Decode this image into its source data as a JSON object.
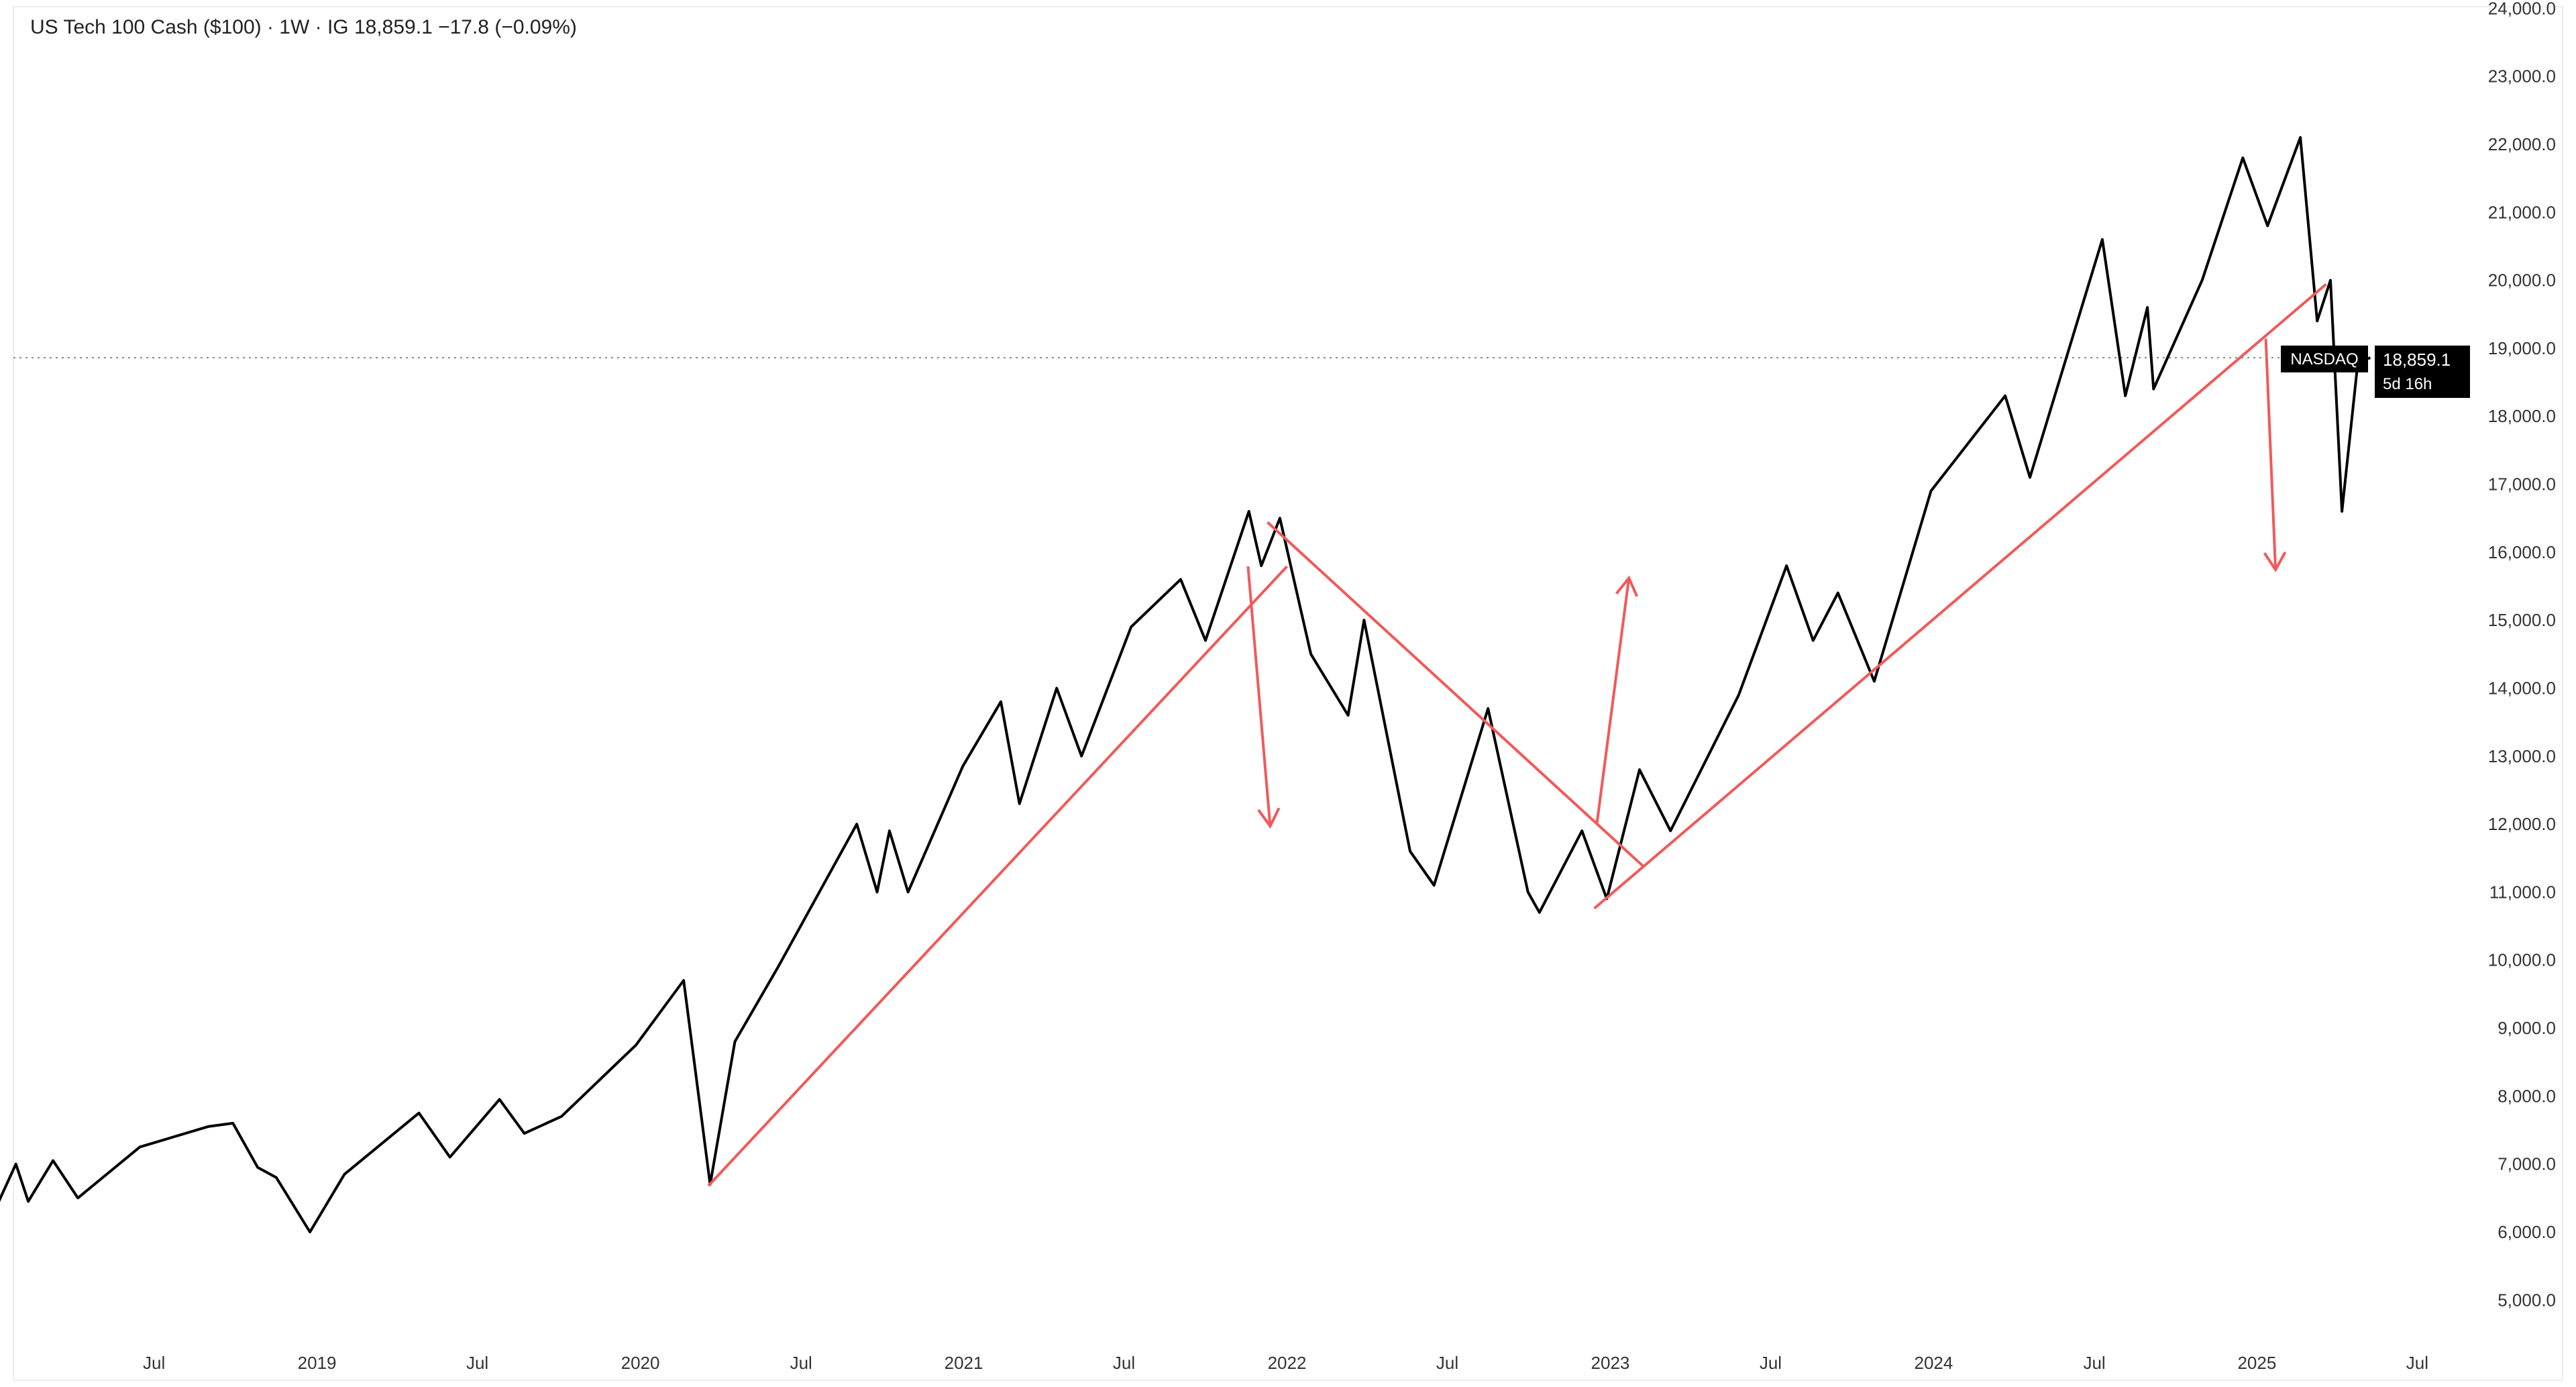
{
  "header": {
    "title": "US Tech 100 Cash ($100) · 1W · IG  18,859.1  −17.8 (−0.09%)"
  },
  "price_label": {
    "symbol": "NASDAQ",
    "price": "18,859.1",
    "countdown": "5d 16h"
  },
  "colors": {
    "line": "#000000",
    "trend": "#f05a5a",
    "grid_dotted": "#888888"
  },
  "chart_data": {
    "type": "line",
    "title": "US Tech 100 Cash ($100) · 1W · IG",
    "ylim": [
      5000,
      24000
    ],
    "grid": false,
    "y_ticks": [
      "24,000.0",
      "23,000.0",
      "22,000.0",
      "21,000.0",
      "20,000.0",
      "19,000.0",
      "18,000.0",
      "17,000.0",
      "16,000.0",
      "15,000.0",
      "14,000.0",
      "13,000.0",
      "12,000.0",
      "11,000.0",
      "10,000.0",
      "9,000.0",
      "8,000.0",
      "7,000.0",
      "6,000.0",
      "5,000.0"
    ],
    "x_ticks": [
      {
        "label": "Jul",
        "date": "2018-07-01"
      },
      {
        "label": "2019",
        "date": "2019-01-01"
      },
      {
        "label": "Jul",
        "date": "2019-07-01"
      },
      {
        "label": "2020",
        "date": "2020-01-01"
      },
      {
        "label": "Jul",
        "date": "2020-07-01"
      },
      {
        "label": "2021",
        "date": "2021-01-01"
      },
      {
        "label": "Jul",
        "date": "2021-07-01"
      },
      {
        "label": "2022",
        "date": "2022-01-01"
      },
      {
        "label": "Jul",
        "date": "2022-07-01"
      },
      {
        "label": "2023",
        "date": "2023-01-01"
      },
      {
        "label": "Jul",
        "date": "2023-07-01"
      },
      {
        "label": "2024",
        "date": "2024-01-01"
      },
      {
        "label": "Jul",
        "date": "2024-07-01"
      },
      {
        "label": "2025",
        "date": "2025-01-01"
      },
      {
        "label": "Jul",
        "date": "2025-07-01"
      }
    ],
    "current_price": 18859.1,
    "series": [
      {
        "points": [
          [
            "2018-01-05",
            6400
          ],
          [
            "2018-01-26",
            7000
          ],
          [
            "2018-02-09",
            6450
          ],
          [
            "2018-03-09",
            7050
          ],
          [
            "2018-04-06",
            6500
          ],
          [
            "2018-06-15",
            7250
          ],
          [
            "2018-08-31",
            7550
          ],
          [
            "2018-09-28",
            7600
          ],
          [
            "2018-10-26",
            6950
          ],
          [
            "2018-11-16",
            6800
          ],
          [
            "2018-12-24",
            6000
          ],
          [
            "2019-02-01",
            6850
          ],
          [
            "2019-04-26",
            7750
          ],
          [
            "2019-05-31",
            7100
          ],
          [
            "2019-07-26",
            7950
          ],
          [
            "2019-08-23",
            7450
          ],
          [
            "2019-10-04",
            7700
          ],
          [
            "2019-12-27",
            8750
          ],
          [
            "2020-02-19",
            9700
          ],
          [
            "2020-03-20",
            6700
          ],
          [
            "2020-04-17",
            8800
          ],
          [
            "2020-06-05",
            9900
          ],
          [
            "2020-09-02",
            12000
          ],
          [
            "2020-09-25",
            11000
          ],
          [
            "2020-10-09",
            11900
          ],
          [
            "2020-10-30",
            11000
          ],
          [
            "2020-12-31",
            12850
          ],
          [
            "2021-02-12",
            13800
          ],
          [
            "2021-03-05",
            12300
          ],
          [
            "2021-04-16",
            14000
          ],
          [
            "2021-05-14",
            13000
          ],
          [
            "2021-07-09",
            14900
          ],
          [
            "2021-09-03",
            15600
          ],
          [
            "2021-10-01",
            14700
          ],
          [
            "2021-11-19",
            16600
          ],
          [
            "2021-12-03",
            15800
          ],
          [
            "2021-12-24",
            16500
          ],
          [
            "2022-01-28",
            14500
          ],
          [
            "2022-03-11",
            13600
          ],
          [
            "2022-03-29",
            15000
          ],
          [
            "2022-05-20",
            11600
          ],
          [
            "2022-06-16",
            11100
          ],
          [
            "2022-08-16",
            13700
          ],
          [
            "2022-09-30",
            11000
          ],
          [
            "2022-10-13",
            10700
          ],
          [
            "2022-11-30",
            11900
          ],
          [
            "2022-12-28",
            10900
          ],
          [
            "2023-02-03",
            12800
          ],
          [
            "2023-03-10",
            11900
          ],
          [
            "2023-05-26",
            13900
          ],
          [
            "2023-07-19",
            15800
          ],
          [
            "2023-08-18",
            14700
          ],
          [
            "2023-09-15",
            15400
          ],
          [
            "2023-10-26",
            14100
          ],
          [
            "2023-12-29",
            16900
          ],
          [
            "2024-03-22",
            18300
          ],
          [
            "2024-04-19",
            17100
          ],
          [
            "2024-07-10",
            20600
          ],
          [
            "2024-08-05",
            18300
          ],
          [
            "2024-08-30",
            19600
          ],
          [
            "2024-09-06",
            18400
          ],
          [
            "2024-10-31",
            20000
          ],
          [
            "2024-12-16",
            21800
          ],
          [
            "2025-01-13",
            20800
          ],
          [
            "2025-02-19",
            22100
          ],
          [
            "2025-03-10",
            19400
          ],
          [
            "2025-03-25",
            20000
          ],
          [
            "2025-04-07",
            16600
          ],
          [
            "2025-04-25",
            18800
          ],
          [
            "2025-05-09",
            18859.1
          ]
        ]
      }
    ],
    "annotations": {
      "trendlines": [
        {
          "from": [
            "2020-03-18",
            6680
          ],
          "to": [
            "2022-01-01",
            15790
          ]
        },
        {
          "from": [
            "2021-12-10",
            16440
          ],
          "to": [
            "2023-02-08",
            11370
          ]
        },
        {
          "from": [
            "2022-12-14",
            10760
          ],
          "to": [
            "2025-03-20",
            19940
          ]
        }
      ],
      "arrows": [
        {
          "from": [
            "2021-11-18",
            15790
          ],
          "to": [
            "2021-12-13",
            11970
          ]
        },
        {
          "from": [
            "2022-12-17",
            12020
          ],
          "to": [
            "2023-01-22",
            15620
          ]
        },
        {
          "from": [
            "2025-01-11",
            19140
          ],
          "to": [
            "2025-01-22",
            15740
          ]
        }
      ]
    }
  }
}
